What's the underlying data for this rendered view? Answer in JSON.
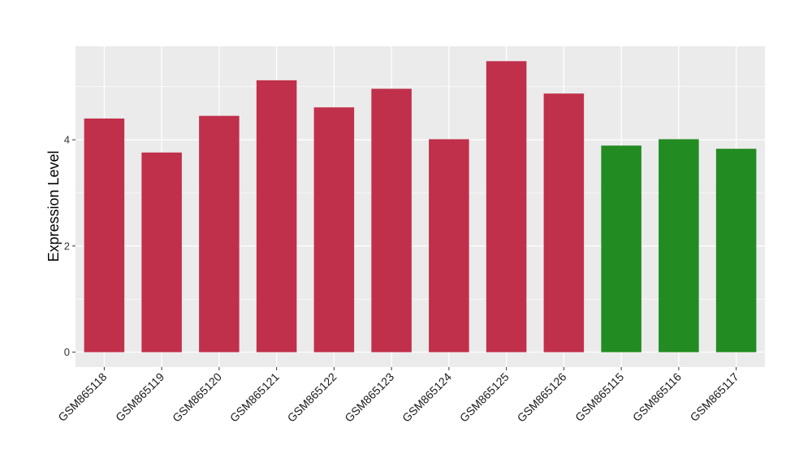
{
  "chart_data": {
    "type": "bar",
    "categories": [
      "GSM865118",
      "GSM865119",
      "GSM865120",
      "GSM865121",
      "GSM865122",
      "GSM865123",
      "GSM865124",
      "GSM865125",
      "GSM865126",
      "GSM865115",
      "GSM865116",
      "GSM865117"
    ],
    "values": [
      4.4,
      3.76,
      4.45,
      5.12,
      4.61,
      4.96,
      4.01,
      5.48,
      4.87,
      3.89,
      4.01,
      3.83
    ],
    "groups": [
      "red",
      "red",
      "red",
      "red",
      "red",
      "red",
      "red",
      "red",
      "red",
      "green",
      "green",
      "green"
    ],
    "colors": {
      "red": "#c0304a",
      "green": "#228b22"
    },
    "ylabel": "Expression Level",
    "xlabel": "",
    "ylim": [
      -0.28,
      5.76
    ],
    "yticks": [
      0,
      2,
      4
    ],
    "grid": true,
    "panel_background": "#ebebeb",
    "gridline_color": "#ffffff"
  }
}
